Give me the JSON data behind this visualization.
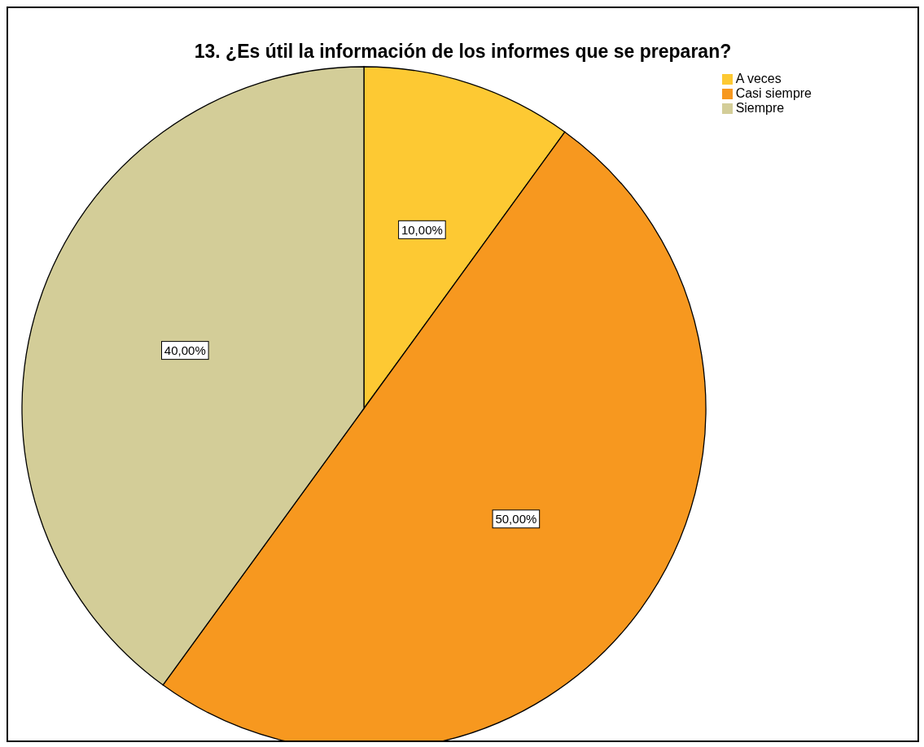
{
  "chart_data": {
    "type": "pie",
    "title": "13. ¿Es útil la información de los informes que se preparan?",
    "categories": [
      "A veces",
      "Casi siempre",
      "Siempre"
    ],
    "values": [
      10,
      50,
      40
    ],
    "colors": [
      "#fdc933",
      "#f7981f",
      "#d3cd98"
    ],
    "value_labels": [
      "10,00%",
      "50,00%",
      "40,00%"
    ],
    "legend": "top right"
  }
}
